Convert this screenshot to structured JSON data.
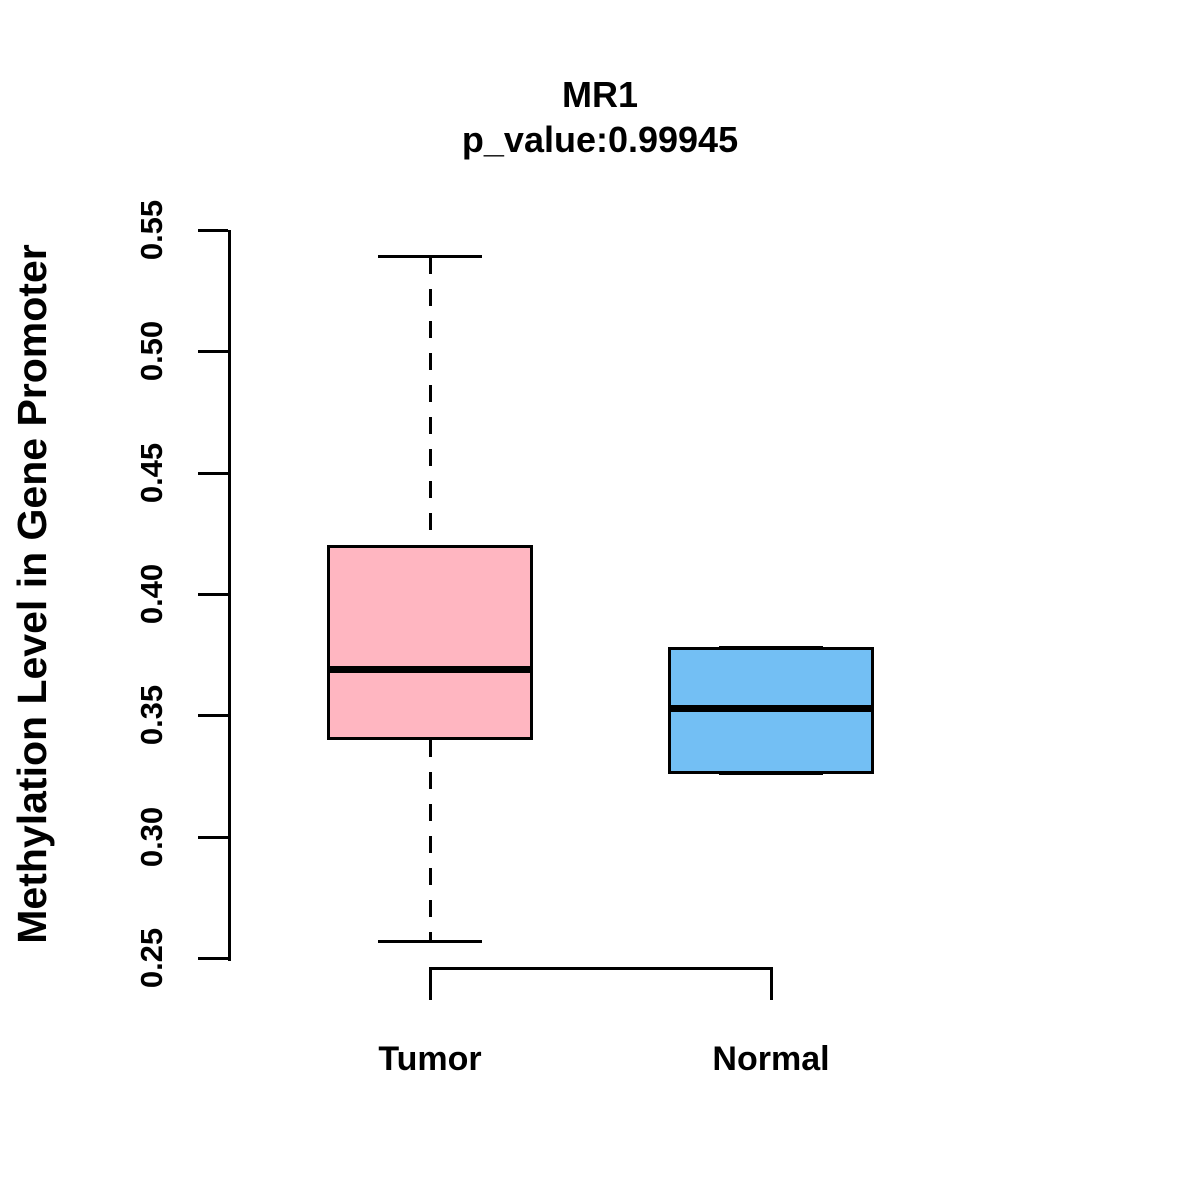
{
  "title": "MR1",
  "subtitle": "p_value:0.99945",
  "p_value": "0.99945",
  "gene": "MR1",
  "colors": {
    "tumor_fill": "#FFB6C1",
    "normal_fill": "#73BFF4",
    "stroke": "#000000",
    "background": "#FFFFFF"
  },
  "chart_data": {
    "type": "boxplot",
    "title": "MR1",
    "subtitle": "p_value:0.99945",
    "ylabel": "Methylation Level in Gene Promoter",
    "xlabel": "",
    "ylim": [
      0.25,
      0.55
    ],
    "y_ticks": [
      0.25,
      0.3,
      0.35,
      0.4,
      0.45,
      0.5,
      0.55
    ],
    "y_tick_labels": [
      "0.25",
      "0.30",
      "0.35",
      "0.40",
      "0.45",
      "0.50",
      "0.55"
    ],
    "grid": false,
    "legend": "none",
    "categories": [
      "Tumor",
      "Normal"
    ],
    "series": [
      {
        "name": "Tumor",
        "lower_whisker": 0.257,
        "q1": 0.34,
        "median": 0.369,
        "q3": 0.42,
        "upper_whisker": 0.539,
        "fill_color": "#FFB6C1"
      },
      {
        "name": "Normal",
        "lower_whisker": 0.326,
        "q1": 0.326,
        "median": 0.353,
        "q3": 0.378,
        "upper_whisker": 0.378,
        "fill_color": "#73BFF4"
      }
    ],
    "comparison_bracket": {
      "between": [
        "Tumor",
        "Normal"
      ]
    }
  }
}
